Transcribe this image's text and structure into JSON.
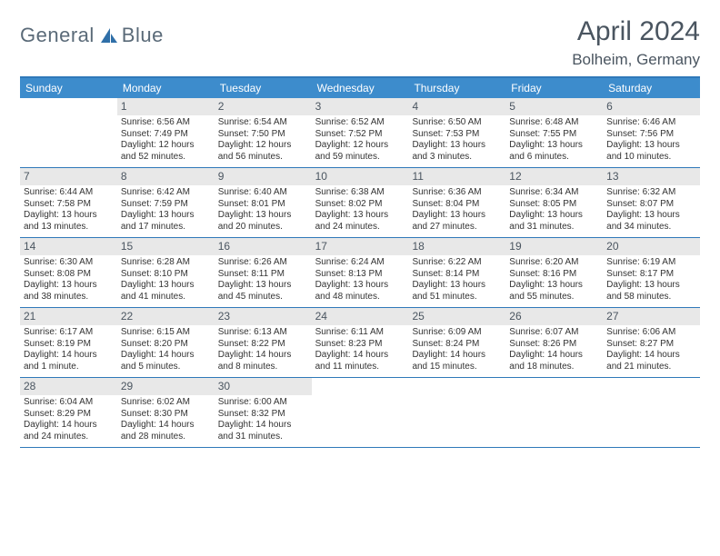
{
  "logo": {
    "text1": "General",
    "text2": "Blue"
  },
  "title": "April 2024",
  "location": "Bolheim, Germany",
  "colors": {
    "header_bg": "#3d8ccc",
    "header_border": "#2f79b9",
    "daynum_bg": "#e8e8e8",
    "text": "#333333",
    "title_color": "#4a5560"
  },
  "day_names": [
    "Sunday",
    "Monday",
    "Tuesday",
    "Wednesday",
    "Thursday",
    "Friday",
    "Saturday"
  ],
  "weeks": [
    [
      {
        "n": "",
        "sr": "",
        "ss": "",
        "dl1": "",
        "dl2": ""
      },
      {
        "n": "1",
        "sr": "Sunrise: 6:56 AM",
        "ss": "Sunset: 7:49 PM",
        "dl1": "Daylight: 12 hours",
        "dl2": "and 52 minutes."
      },
      {
        "n": "2",
        "sr": "Sunrise: 6:54 AM",
        "ss": "Sunset: 7:50 PM",
        "dl1": "Daylight: 12 hours",
        "dl2": "and 56 minutes."
      },
      {
        "n": "3",
        "sr": "Sunrise: 6:52 AM",
        "ss": "Sunset: 7:52 PM",
        "dl1": "Daylight: 12 hours",
        "dl2": "and 59 minutes."
      },
      {
        "n": "4",
        "sr": "Sunrise: 6:50 AM",
        "ss": "Sunset: 7:53 PM",
        "dl1": "Daylight: 13 hours",
        "dl2": "and 3 minutes."
      },
      {
        "n": "5",
        "sr": "Sunrise: 6:48 AM",
        "ss": "Sunset: 7:55 PM",
        "dl1": "Daylight: 13 hours",
        "dl2": "and 6 minutes."
      },
      {
        "n": "6",
        "sr": "Sunrise: 6:46 AM",
        "ss": "Sunset: 7:56 PM",
        "dl1": "Daylight: 13 hours",
        "dl2": "and 10 minutes."
      }
    ],
    [
      {
        "n": "7",
        "sr": "Sunrise: 6:44 AM",
        "ss": "Sunset: 7:58 PM",
        "dl1": "Daylight: 13 hours",
        "dl2": "and 13 minutes."
      },
      {
        "n": "8",
        "sr": "Sunrise: 6:42 AM",
        "ss": "Sunset: 7:59 PM",
        "dl1": "Daylight: 13 hours",
        "dl2": "and 17 minutes."
      },
      {
        "n": "9",
        "sr": "Sunrise: 6:40 AM",
        "ss": "Sunset: 8:01 PM",
        "dl1": "Daylight: 13 hours",
        "dl2": "and 20 minutes."
      },
      {
        "n": "10",
        "sr": "Sunrise: 6:38 AM",
        "ss": "Sunset: 8:02 PM",
        "dl1": "Daylight: 13 hours",
        "dl2": "and 24 minutes."
      },
      {
        "n": "11",
        "sr": "Sunrise: 6:36 AM",
        "ss": "Sunset: 8:04 PM",
        "dl1": "Daylight: 13 hours",
        "dl2": "and 27 minutes."
      },
      {
        "n": "12",
        "sr": "Sunrise: 6:34 AM",
        "ss": "Sunset: 8:05 PM",
        "dl1": "Daylight: 13 hours",
        "dl2": "and 31 minutes."
      },
      {
        "n": "13",
        "sr": "Sunrise: 6:32 AM",
        "ss": "Sunset: 8:07 PM",
        "dl1": "Daylight: 13 hours",
        "dl2": "and 34 minutes."
      }
    ],
    [
      {
        "n": "14",
        "sr": "Sunrise: 6:30 AM",
        "ss": "Sunset: 8:08 PM",
        "dl1": "Daylight: 13 hours",
        "dl2": "and 38 minutes."
      },
      {
        "n": "15",
        "sr": "Sunrise: 6:28 AM",
        "ss": "Sunset: 8:10 PM",
        "dl1": "Daylight: 13 hours",
        "dl2": "and 41 minutes."
      },
      {
        "n": "16",
        "sr": "Sunrise: 6:26 AM",
        "ss": "Sunset: 8:11 PM",
        "dl1": "Daylight: 13 hours",
        "dl2": "and 45 minutes."
      },
      {
        "n": "17",
        "sr": "Sunrise: 6:24 AM",
        "ss": "Sunset: 8:13 PM",
        "dl1": "Daylight: 13 hours",
        "dl2": "and 48 minutes."
      },
      {
        "n": "18",
        "sr": "Sunrise: 6:22 AM",
        "ss": "Sunset: 8:14 PM",
        "dl1": "Daylight: 13 hours",
        "dl2": "and 51 minutes."
      },
      {
        "n": "19",
        "sr": "Sunrise: 6:20 AM",
        "ss": "Sunset: 8:16 PM",
        "dl1": "Daylight: 13 hours",
        "dl2": "and 55 minutes."
      },
      {
        "n": "20",
        "sr": "Sunrise: 6:19 AM",
        "ss": "Sunset: 8:17 PM",
        "dl1": "Daylight: 13 hours",
        "dl2": "and 58 minutes."
      }
    ],
    [
      {
        "n": "21",
        "sr": "Sunrise: 6:17 AM",
        "ss": "Sunset: 8:19 PM",
        "dl1": "Daylight: 14 hours",
        "dl2": "and 1 minute."
      },
      {
        "n": "22",
        "sr": "Sunrise: 6:15 AM",
        "ss": "Sunset: 8:20 PM",
        "dl1": "Daylight: 14 hours",
        "dl2": "and 5 minutes."
      },
      {
        "n": "23",
        "sr": "Sunrise: 6:13 AM",
        "ss": "Sunset: 8:22 PM",
        "dl1": "Daylight: 14 hours",
        "dl2": "and 8 minutes."
      },
      {
        "n": "24",
        "sr": "Sunrise: 6:11 AM",
        "ss": "Sunset: 8:23 PM",
        "dl1": "Daylight: 14 hours",
        "dl2": "and 11 minutes."
      },
      {
        "n": "25",
        "sr": "Sunrise: 6:09 AM",
        "ss": "Sunset: 8:24 PM",
        "dl1": "Daylight: 14 hours",
        "dl2": "and 15 minutes."
      },
      {
        "n": "26",
        "sr": "Sunrise: 6:07 AM",
        "ss": "Sunset: 8:26 PM",
        "dl1": "Daylight: 14 hours",
        "dl2": "and 18 minutes."
      },
      {
        "n": "27",
        "sr": "Sunrise: 6:06 AM",
        "ss": "Sunset: 8:27 PM",
        "dl1": "Daylight: 14 hours",
        "dl2": "and 21 minutes."
      }
    ],
    [
      {
        "n": "28",
        "sr": "Sunrise: 6:04 AM",
        "ss": "Sunset: 8:29 PM",
        "dl1": "Daylight: 14 hours",
        "dl2": "and 24 minutes."
      },
      {
        "n": "29",
        "sr": "Sunrise: 6:02 AM",
        "ss": "Sunset: 8:30 PM",
        "dl1": "Daylight: 14 hours",
        "dl2": "and 28 minutes."
      },
      {
        "n": "30",
        "sr": "Sunrise: 6:00 AM",
        "ss": "Sunset: 8:32 PM",
        "dl1": "Daylight: 14 hours",
        "dl2": "and 31 minutes."
      },
      {
        "n": "",
        "sr": "",
        "ss": "",
        "dl1": "",
        "dl2": ""
      },
      {
        "n": "",
        "sr": "",
        "ss": "",
        "dl1": "",
        "dl2": ""
      },
      {
        "n": "",
        "sr": "",
        "ss": "",
        "dl1": "",
        "dl2": ""
      },
      {
        "n": "",
        "sr": "",
        "ss": "",
        "dl1": "",
        "dl2": ""
      }
    ]
  ]
}
